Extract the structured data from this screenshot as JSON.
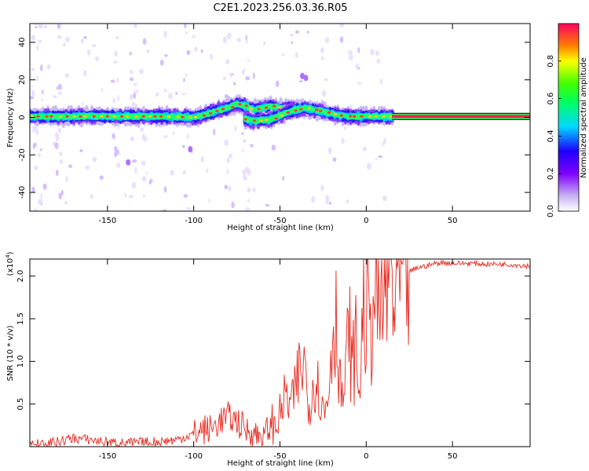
{
  "title": "C2E1.2023.256.03.36.R05",
  "chart_data": [
    {
      "type": "heatmap",
      "xlabel": "Height of straight line (km)",
      "ylabel": "Frequency (Hz)",
      "xlim": [
        -195,
        95
      ],
      "ylim": [
        -50,
        50
      ],
      "xticks": [
        -150,
        -100,
        -50,
        0,
        50
      ],
      "yticks": [
        -40,
        -20,
        0,
        20,
        40
      ],
      "colorbar": {
        "label": "Normalized spectral amplitude",
        "range": [
          0,
          1
        ],
        "ticks": [
          "0.0",
          "0.2",
          "0.4",
          "0.6",
          "0.8"
        ]
      },
      "ridge": [
        [
          -195,
          0.5
        ],
        [
          -180,
          0.5
        ],
        [
          -160,
          0.5
        ],
        [
          -140,
          0.5
        ],
        [
          -120,
          0.5
        ],
        [
          -100,
          0
        ],
        [
          -95,
          1
        ],
        [
          -90,
          2.5
        ],
        [
          -85,
          4
        ],
        [
          -80,
          5
        ],
        [
          -75,
          7
        ],
        [
          -70,
          6
        ],
        [
          -65,
          4
        ],
        [
          -60,
          5
        ],
        [
          -55,
          6
        ],
        [
          -50,
          5
        ],
        [
          -45,
          5
        ],
        [
          -40,
          5
        ],
        [
          -35,
          4
        ],
        [
          -30,
          4
        ],
        [
          -25,
          3
        ],
        [
          -20,
          2
        ],
        [
          -15,
          1
        ],
        [
          -10,
          0.5
        ],
        [
          15,
          0.5
        ],
        [
          95,
          0.5
        ]
      ],
      "secondary_ridge": [
        [
          -70,
          -1
        ],
        [
          -65,
          -2
        ],
        [
          -60,
          -1.5
        ],
        [
          -55,
          -1
        ],
        [
          -50,
          1
        ],
        [
          -45,
          3
        ],
        [
          -40,
          4
        ],
        [
          -35,
          5
        ],
        [
          -30,
          4
        ]
      ],
      "flat_tone_range": [
        15,
        95
      ]
    },
    {
      "type": "line",
      "xlabel": "Height of straight line (km)",
      "ylabel": "SNR (10 * v/v)",
      "y_multiplier": "(x10^4)",
      "xlim": [
        -195,
        95
      ],
      "ylim": [
        0,
        2.2
      ],
      "xticks": [
        -150,
        -100,
        -50,
        0,
        50
      ],
      "yticks": [
        "0.5",
        "1.0",
        "1.5",
        "2.0"
      ],
      "series": [
        {
          "color": "#e8281e",
          "x": [
            -195,
            -180,
            -170,
            -160,
            -150,
            -140,
            -130,
            -120,
            -110,
            -100,
            -95,
            -90,
            -85,
            -80,
            -75,
            -70,
            -65,
            -60,
            -55,
            -50,
            -47,
            -45,
            -42,
            -40,
            -38,
            -36,
            -34,
            -32,
            -30,
            -28,
            -26,
            -24,
            -22,
            -20,
            -18,
            -16,
            -14,
            -12,
            -10,
            -8,
            -6,
            -4,
            -2,
            0,
            2,
            4,
            6,
            8,
            10,
            12,
            14,
            16,
            18,
            20,
            22,
            25,
            30,
            35,
            40,
            45,
            50,
            60,
            70,
            80,
            95
          ],
          "y": [
            0.02,
            0.05,
            0.1,
            0.08,
            0.05,
            0.04,
            0.05,
            0.06,
            0.08,
            0.15,
            0.2,
            0.2,
            0.3,
            0.35,
            0.3,
            0.2,
            0.15,
            0.12,
            0.25,
            0.35,
            0.6,
            0.5,
            0.55,
            0.8,
            0.9,
            1.0,
            0.6,
            0.5,
            0.9,
            0.7,
            0.5,
            0.4,
            0.6,
            1.3,
            1.6,
            1.1,
            0.5,
            0.8,
            1.4,
            0.9,
            1.2,
            0.6,
            1.5,
            1.7,
            1.3,
            1.7,
            1.9,
            1.5,
            1.8,
            1.9,
            2.1,
            1.6,
            2.0,
            1.9,
            2.15,
            2.05,
            2.1,
            2.12,
            2.15,
            2.16,
            2.15,
            2.15,
            2.14,
            2.14,
            2.12
          ]
        }
      ]
    }
  ]
}
